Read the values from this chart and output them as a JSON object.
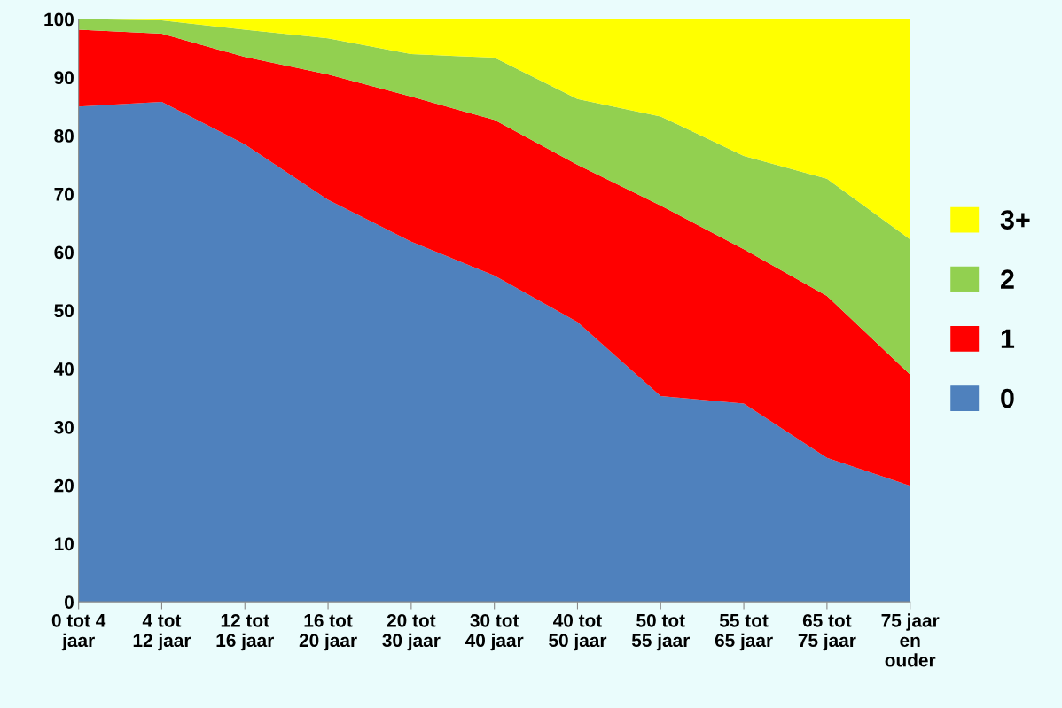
{
  "chart_data": {
    "type": "area",
    "stacked": true,
    "categories": [
      "0 tot 4\njaar",
      "4 tot\n12 jaar",
      "12 tot\n16 jaar",
      "16 tot\n20 jaar",
      "20 tot\n30 jaar",
      "30 tot\n40 jaar",
      "40 tot\n50 jaar",
      "50 tot\n55 jaar",
      "55 tot\n65 jaar",
      "65 tot\n75 jaar",
      "75 jaar\nen\nouder"
    ],
    "series": [
      {
        "name": "0",
        "color": "#4f81bd",
        "values": [
          85,
          85.8,
          78.5,
          69,
          61.8,
          56,
          48,
          35.3,
          34,
          24.7,
          19.9
        ]
      },
      {
        "name": "1",
        "color": "#ff0000",
        "values": [
          13.2,
          11.7,
          15,
          21.5,
          24.9,
          26.7,
          27,
          32.7,
          26.5,
          27.8,
          19.1
        ]
      },
      {
        "name": "2",
        "color": "#92d050",
        "values": [
          1.8,
          2.3,
          4.7,
          6.2,
          7.3,
          10.7,
          11.3,
          15.3,
          16,
          20.1,
          23.2
        ]
      },
      {
        "name": "3+",
        "color": "#ffff00",
        "values": [
          0,
          0.2,
          1.8,
          3.3,
          6,
          6.6,
          13.7,
          16.7,
          23.5,
          27.4,
          37.8
        ]
      }
    ],
    "ylim": [
      0,
      100
    ],
    "yticks": [
      0,
      10,
      20,
      30,
      40,
      50,
      60,
      70,
      80,
      90,
      100
    ],
    "grid": false,
    "legend": "right"
  }
}
